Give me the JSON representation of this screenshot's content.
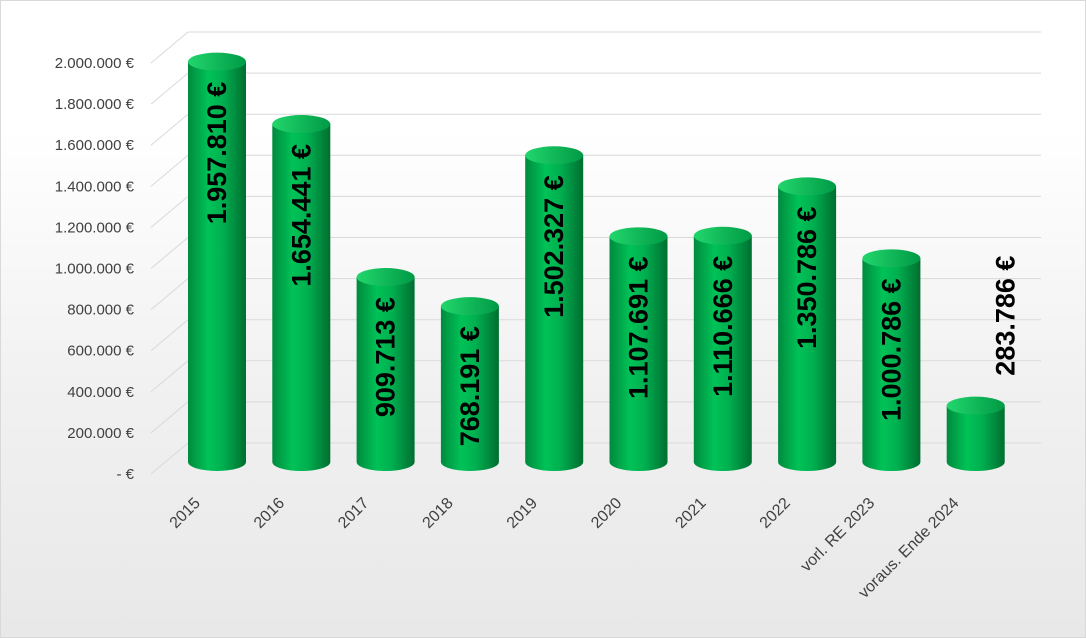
{
  "chart_data": {
    "type": "bar",
    "style": "3d-cylinder",
    "colors": {
      "bar": "#00b050",
      "bar_dark": "#007a36",
      "bar_light": "#33e27a",
      "gridline": "#d9d9d9",
      "text": "#404040"
    },
    "categories": [
      "2015",
      "2016",
      "2017",
      "2018",
      "2019",
      "2020",
      "2021",
      "2022",
      "vorl. RE 2023",
      "voraus. Ende 2024"
    ],
    "values": [
      1957810,
      1654441,
      909713,
      768191,
      1502327,
      1107691,
      1110666,
      1350786,
      1000786,
      283786
    ],
    "value_labels": [
      "1.957.810 €",
      "1.654.441 €",
      "909.713 €",
      "768.191 €",
      "1.502.327 €",
      "1.107.691 €",
      "1.110.666 €",
      "1.350.786 €",
      "1.000.786 €",
      "283.786 €"
    ],
    "yticks": [
      0,
      200000,
      400000,
      600000,
      800000,
      1000000,
      1200000,
      1400000,
      1600000,
      1800000,
      2000000
    ],
    "ytick_labels": [
      "-  €",
      "200.000 €",
      "400.000 €",
      "600.000 €",
      "800.000 €",
      "1.000.000 €",
      "1.200.000 €",
      "1.400.000 €",
      "1.600.000 €",
      "1.800.000 €",
      "2.000.000 €"
    ],
    "ylim": [
      0,
      2000000
    ],
    "grid": true,
    "legend": "none",
    "title": "",
    "xlabel": "",
    "ylabel": ""
  }
}
